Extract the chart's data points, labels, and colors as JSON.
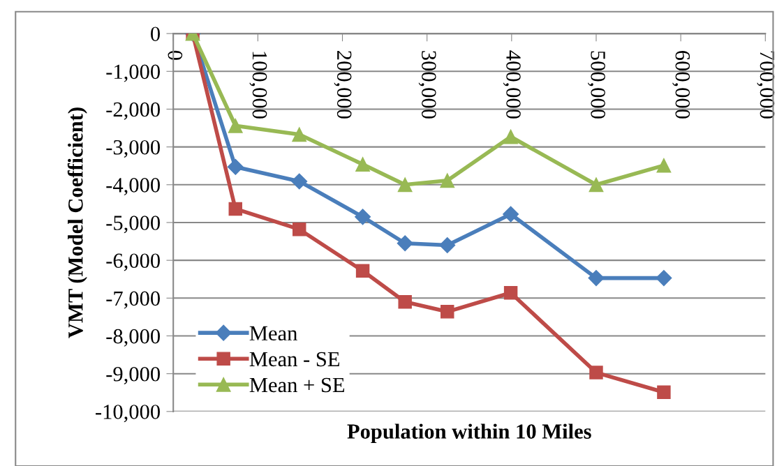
{
  "chart_data": {
    "type": "line",
    "xlabel": "Population within 10 Miles",
    "ylabel": "VMT (Model Coefficient)",
    "x": [
      23000,
      73500,
      149000,
      224000,
      274000,
      324000,
      399000,
      500000,
      580000
    ],
    "series": [
      {
        "name": "Mean",
        "color": "#4a7ebb",
        "marker": "diamond",
        "values": [
          0,
          -3530,
          -3910,
          -4850,
          -5550,
          -5600,
          -4780,
          -6470,
          -6470
        ]
      },
      {
        "name": "Mean - SE",
        "color": "#be4b48",
        "marker": "square",
        "values": [
          0,
          -4640,
          -5180,
          -6280,
          -7100,
          -7360,
          -6860,
          -8970,
          -9490
        ]
      },
      {
        "name": "Mean + SE",
        "color": "#98b954",
        "marker": "triangle",
        "values": [
          0,
          -2440,
          -2670,
          -3460,
          -4000,
          -3890,
          -2730,
          -4000,
          -3490
        ]
      }
    ],
    "xlim": [
      0,
      700000
    ],
    "xticks": [
      0,
      {
        "value": 100000,
        "label": "100,000"
      },
      {
        "value": 200000,
        "label": "200,000"
      },
      {
        "value": 300000,
        "label": "300,000"
      },
      {
        "value": 400000,
        "label": "400,000"
      },
      {
        "value": 500000,
        "label": "500,000"
      },
      {
        "value": 600000,
        "label": "600,000"
      },
      {
        "value": 700000,
        "label": "700,000"
      }
    ],
    "ylim": [
      -10000,
      0
    ],
    "yticks": [
      0,
      {
        "value": -1000,
        "label": "-1,000"
      },
      {
        "value": -2000,
        "label": "-2,000"
      },
      {
        "value": -3000,
        "label": "-3,000"
      },
      {
        "value": -4000,
        "label": "-4,000"
      },
      {
        "value": -5000,
        "label": "-5,000"
      },
      {
        "value": -6000,
        "label": "-6,000"
      },
      {
        "value": -7000,
        "label": "-7,000"
      },
      {
        "value": -8000,
        "label": "-8,000"
      },
      {
        "value": -9000,
        "label": "-9,000"
      },
      {
        "value": -10000,
        "label": "-10,000"
      }
    ],
    "grid": "y",
    "legend": "bottom left",
    "line_style": "solid"
  }
}
